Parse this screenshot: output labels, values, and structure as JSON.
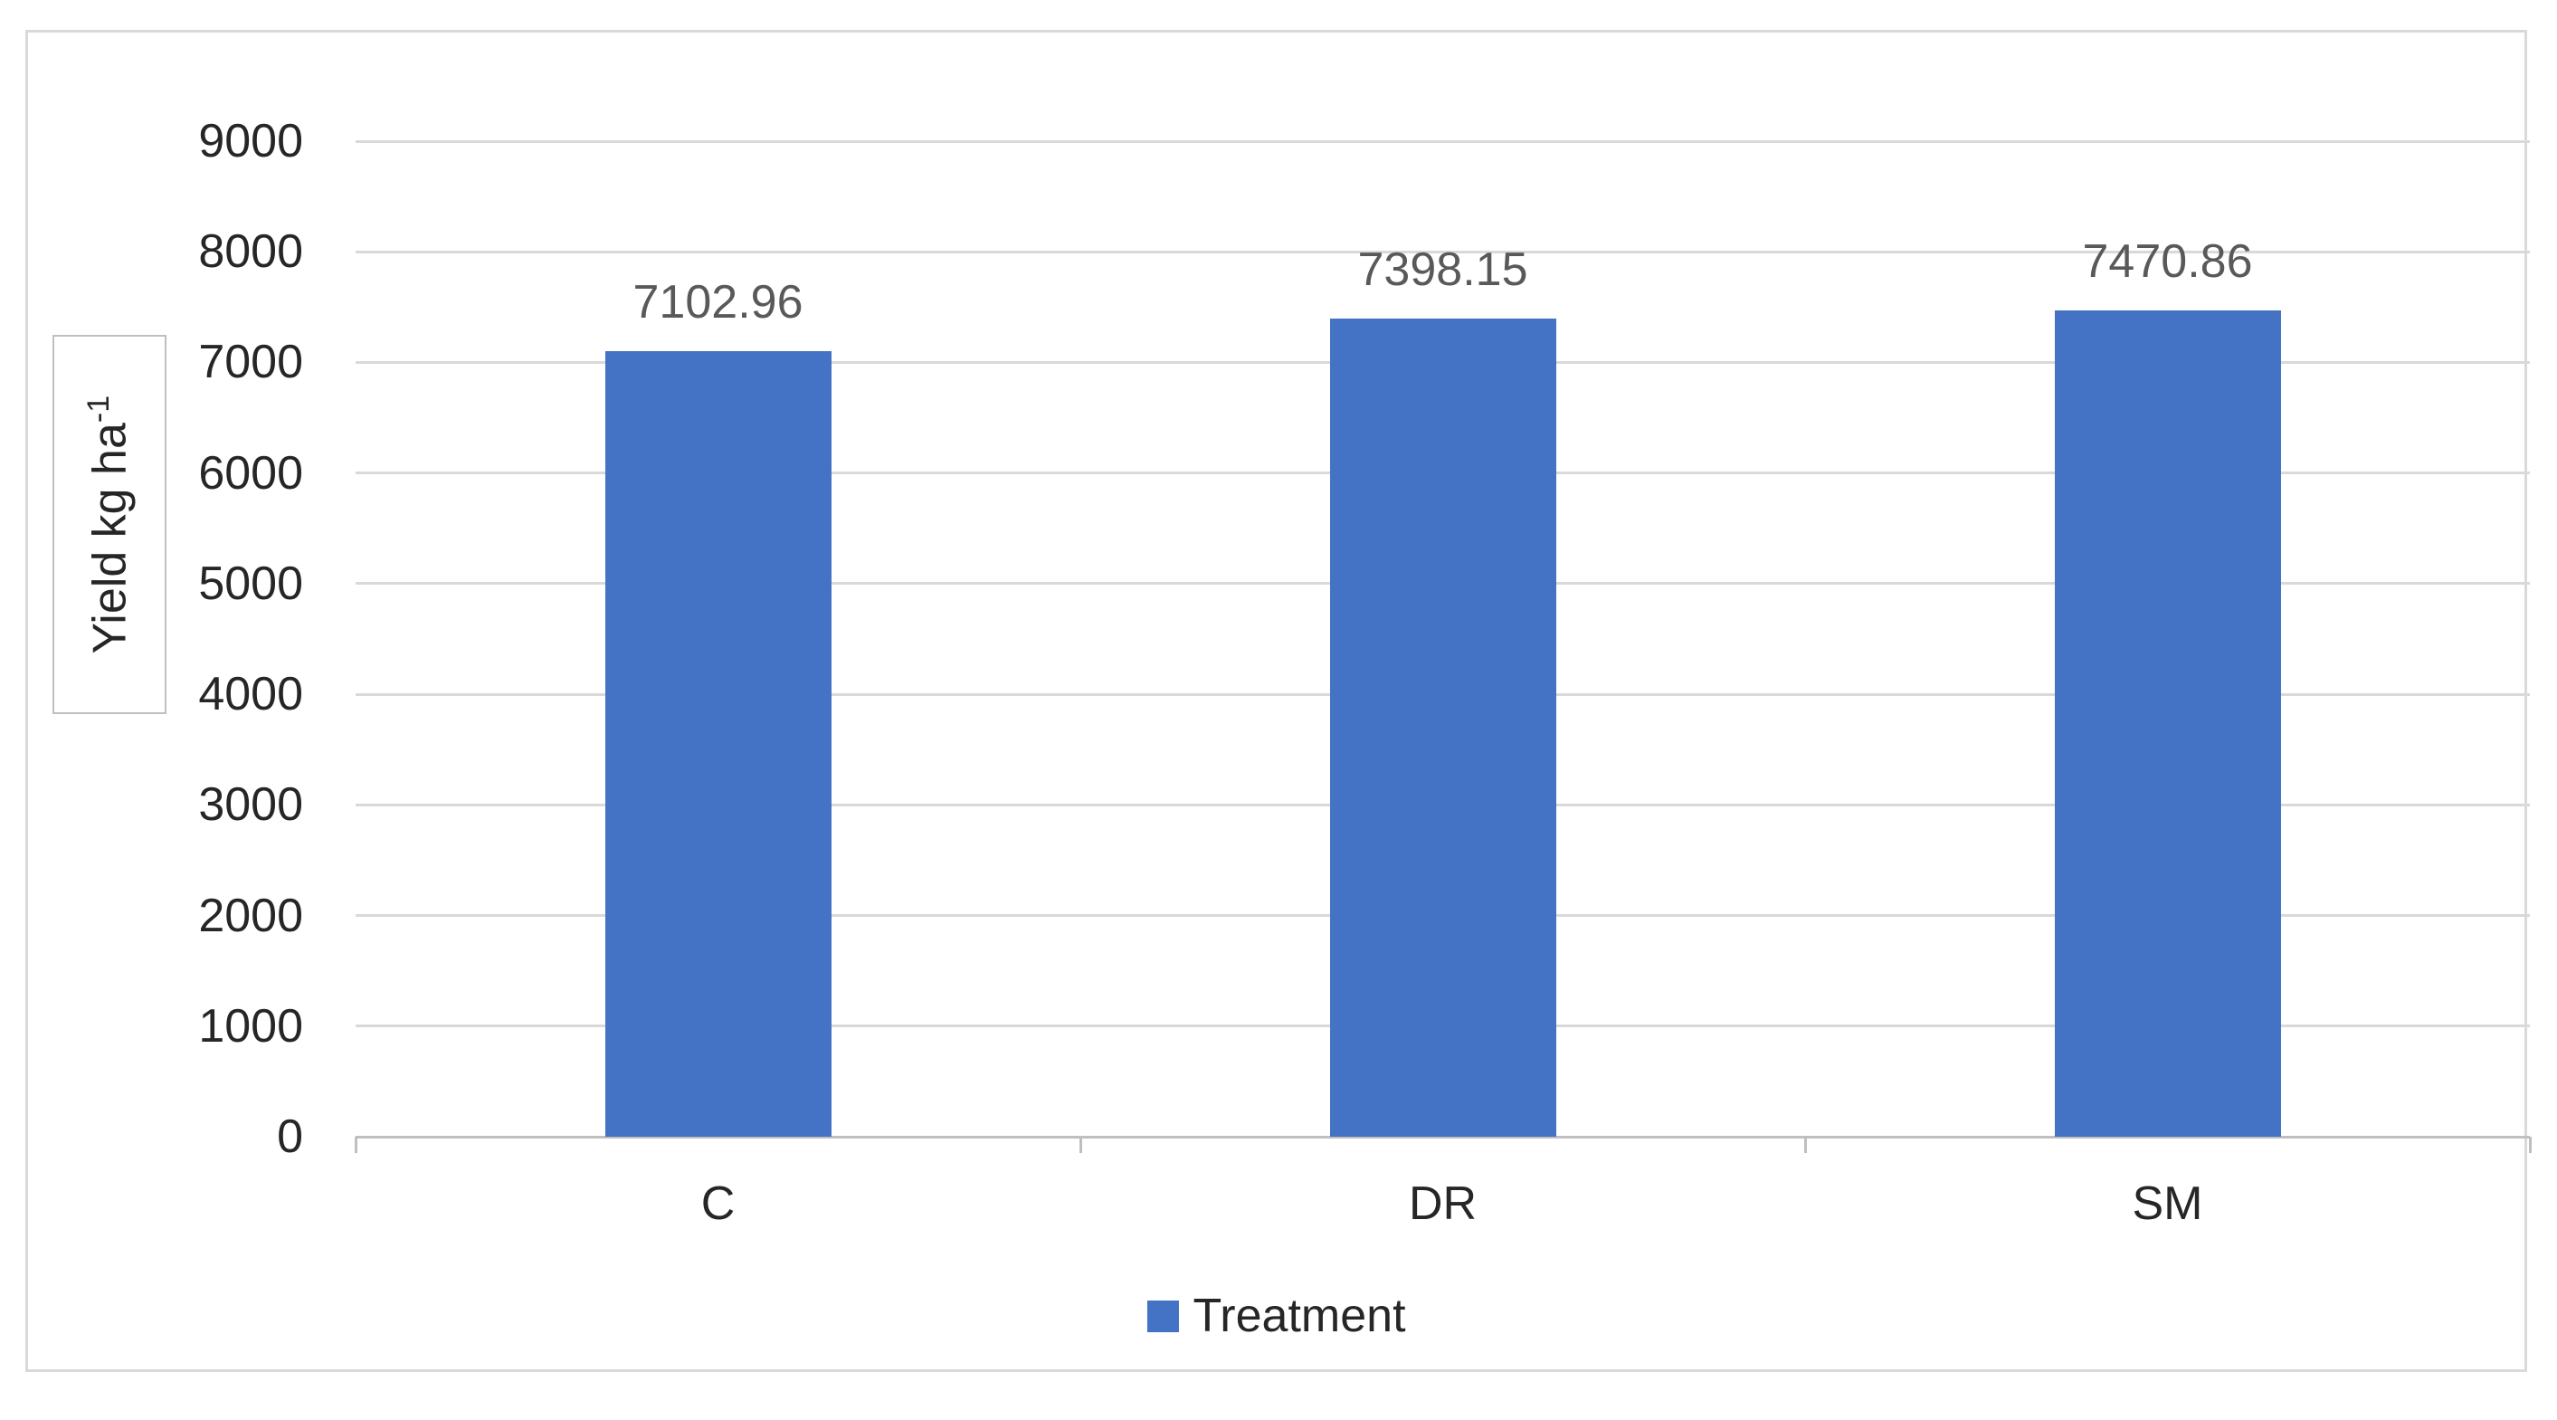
{
  "chart_data": {
    "type": "bar",
    "title": "",
    "categories": [
      "C",
      "DR",
      "SM"
    ],
    "series": [
      {
        "name": "Treatment",
        "values": [
          7102.96,
          7398.15,
          7470.86
        ]
      }
    ],
    "value_labels": [
      "7102.96",
      "7398.15",
      "7470.86"
    ],
    "xlabel": "",
    "ylabel": "Yield kg ha⁻¹",
    "ylabel_base": "Yield kg ha",
    "ylabel_sup": "-1",
    "ylim": [
      0,
      9000
    ],
    "yticks": [
      0,
      1000,
      2000,
      3000,
      4000,
      5000,
      6000,
      7000,
      8000,
      9000
    ],
    "grid": "horizontal",
    "legend": {
      "position": "bottom",
      "items": [
        {
          "label": "Treatment",
          "color": "#4472C4"
        }
      ]
    },
    "colors": {
      "bar": "#4472C4",
      "gridline": "#D9D9D9",
      "axis_line": "#BFBFBF",
      "tick_label": "#262626",
      "value_label": "#595959",
      "chart_border": "#D9D9D9",
      "background": "#FFFFFF"
    }
  }
}
